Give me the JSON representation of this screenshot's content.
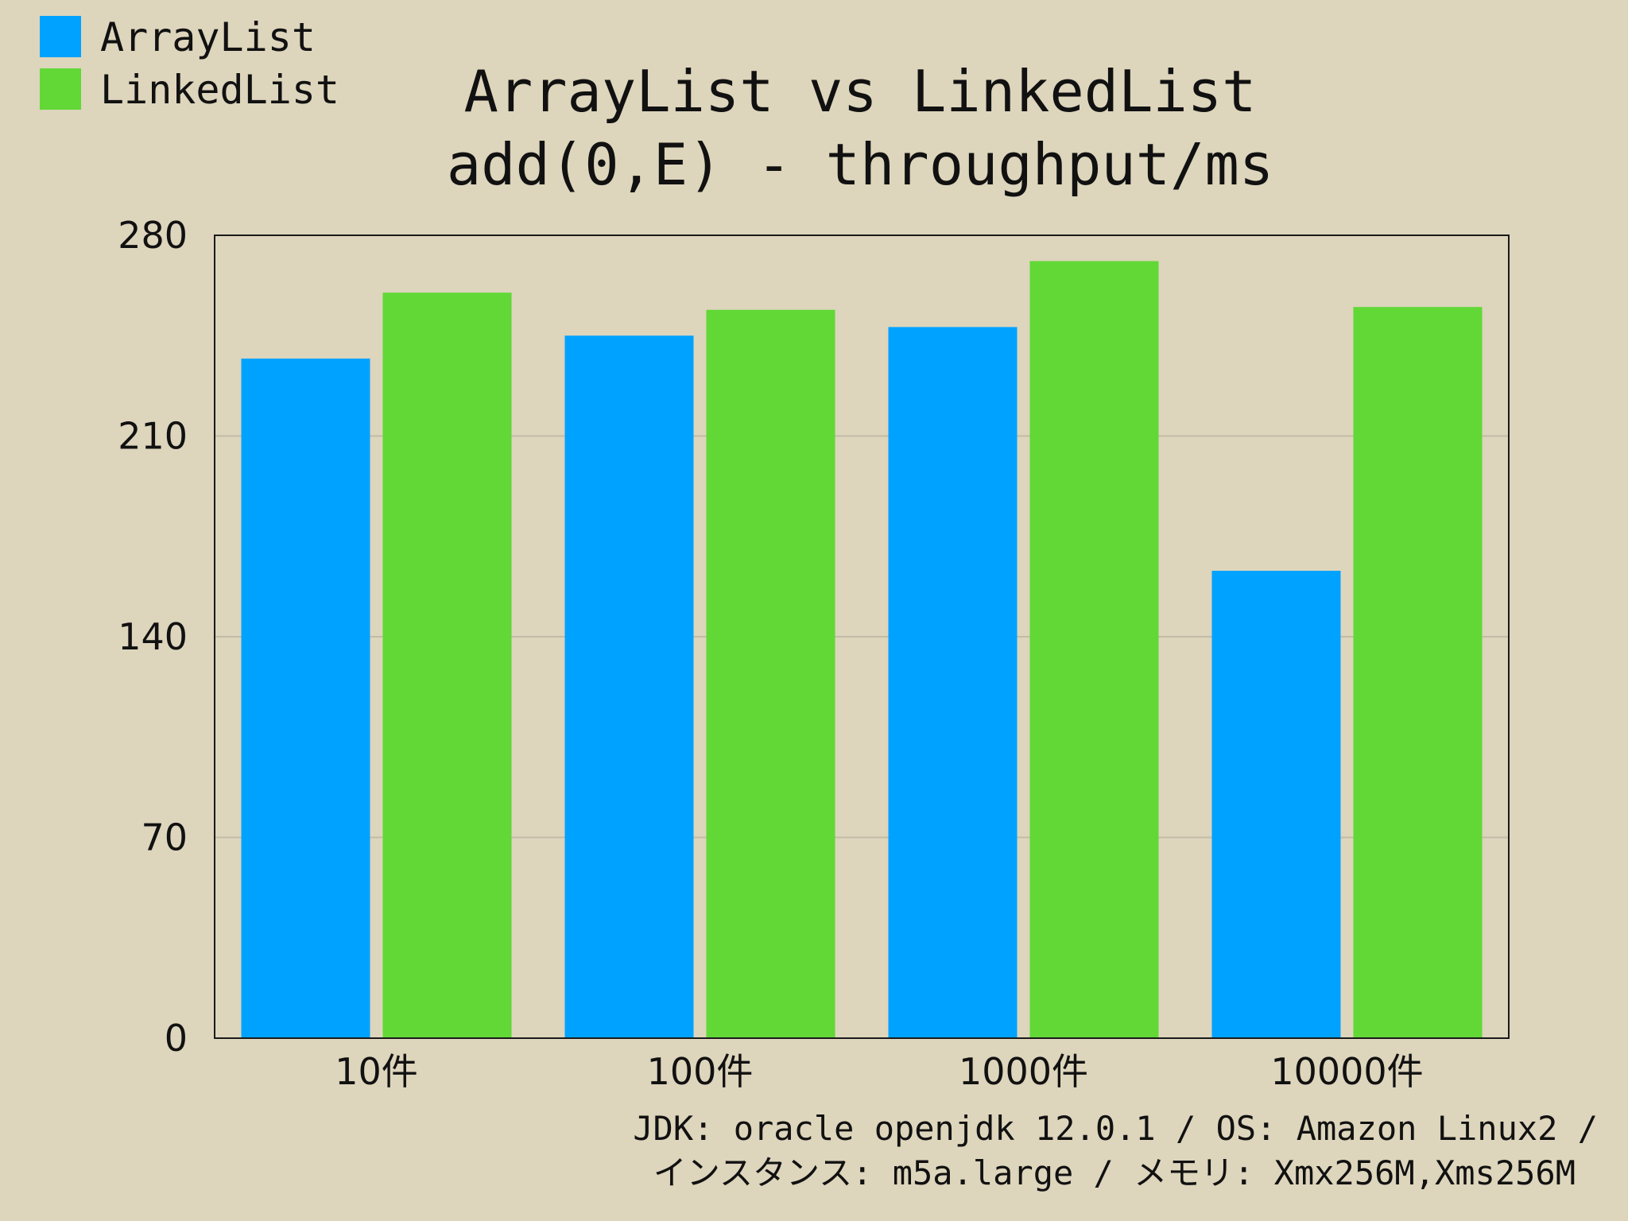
{
  "chart_data": {
    "type": "bar",
    "title_lines": [
      "ArrayList vs LinkedList",
      "add(0,E) - throughput/ms"
    ],
    "categories": [
      "10件",
      "100件",
      "1000件",
      "10000件"
    ],
    "series": [
      {
        "name": "ArrayList",
        "color": "#00a2ff",
        "values": [
          237,
          245,
          248,
          163
        ]
      },
      {
        "name": "LinkedList",
        "color": "#61d836",
        "values": [
          260,
          254,
          271,
          255
        ]
      }
    ],
    "ylim": [
      0,
      280
    ],
    "yticks": [
      0,
      70,
      140,
      210,
      280
    ],
    "ytick_labels": [
      "0",
      "70",
      "140",
      "210",
      "280"
    ],
    "grid": true,
    "legend_position": "top-left"
  },
  "footnote": {
    "line1": "JDK: oracle openjdk 12.0.1 / OS: Amazon Linux2 /",
    "line2": "インスタンス: m5a.large / メモリ: Xmx256M,Xms256M"
  }
}
